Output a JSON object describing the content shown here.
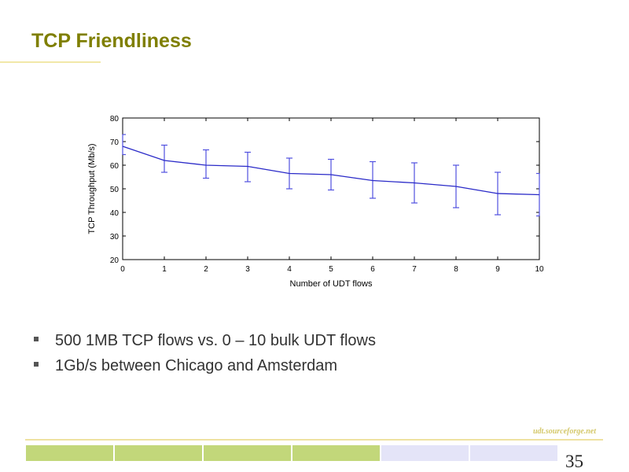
{
  "slide": {
    "title": "TCP Friendliness",
    "bullets": [
      "500 1MB TCP flows vs. 0 – 10 bulk UDT flows",
      "1Gb/s between Chicago and Amsterdam"
    ],
    "footer_site": "udt.sourceforge.net",
    "page_number": "35",
    "colors": {
      "title": "#7f7f00",
      "accent_green": "#c2d77a",
      "accent_lavender": "#e4e4f8",
      "series_line": "#2a2ac8",
      "error_bars": "#5050e0"
    }
  },
  "chart_data": {
    "type": "line",
    "title": "",
    "xlabel": "Number of UDT flows",
    "ylabel": "TCP Throughput (Mb/s)",
    "xlim": [
      0,
      10
    ],
    "ylim": [
      20,
      80
    ],
    "xticks": [
      "0",
      "1",
      "2",
      "3",
      "4",
      "5",
      "6",
      "7",
      "8",
      "9",
      "10"
    ],
    "yticks": [
      "20",
      "30",
      "40",
      "50",
      "60",
      "70",
      "80"
    ],
    "grid": false,
    "legend": "none",
    "x": [
      0,
      1,
      2,
      3,
      4,
      5,
      6,
      7,
      8,
      9,
      10
    ],
    "series": [
      {
        "values": [
          68,
          62,
          60,
          59.5,
          56.5,
          56,
          53.5,
          52.5,
          51,
          48,
          47.5
        ],
        "error_low": [
          64.5,
          57,
          54.5,
          53,
          50,
          49.5,
          46,
          44,
          42,
          39,
          38.5
        ],
        "error_high": [
          73,
          68.5,
          66.5,
          65.5,
          63,
          62.5,
          61.5,
          61,
          60,
          57,
          56.5
        ]
      }
    ]
  }
}
